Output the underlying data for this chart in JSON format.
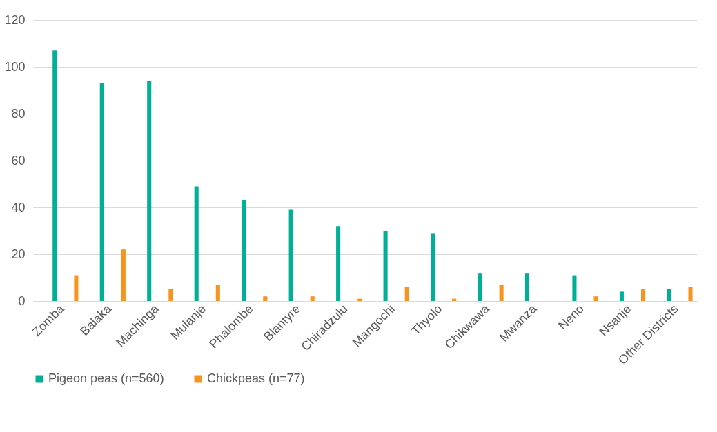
{
  "chart_data": {
    "type": "bar",
    "categories": [
      "Zomba",
      "Balaka",
      "Machinga",
      "Mulanje",
      "Phalombe",
      "Blantyre",
      "Chiradzulu",
      "Mangochi",
      "Thyolo",
      "Chikwawa",
      "Mwanza",
      "Neno",
      "Nsanje",
      "Other Districts"
    ],
    "series": [
      {
        "name": "Pigeon peas (n=560)",
        "color": "#00b096",
        "values": [
          107,
          93,
          94,
          49,
          43,
          39,
          32,
          30,
          29,
          12,
          12,
          11,
          4,
          5
        ]
      },
      {
        "name": "Chickpeas (n=77)",
        "color": "#f7941d",
        "values": [
          11,
          22,
          5,
          7,
          2,
          2,
          1,
          6,
          1,
          7,
          0,
          2,
          5,
          6
        ]
      }
    ],
    "ylim": [
      0,
      120
    ],
    "yticks": [
      0,
      20,
      40,
      60,
      80,
      100,
      120
    ],
    "grid": "y",
    "legend": "bottom"
  }
}
